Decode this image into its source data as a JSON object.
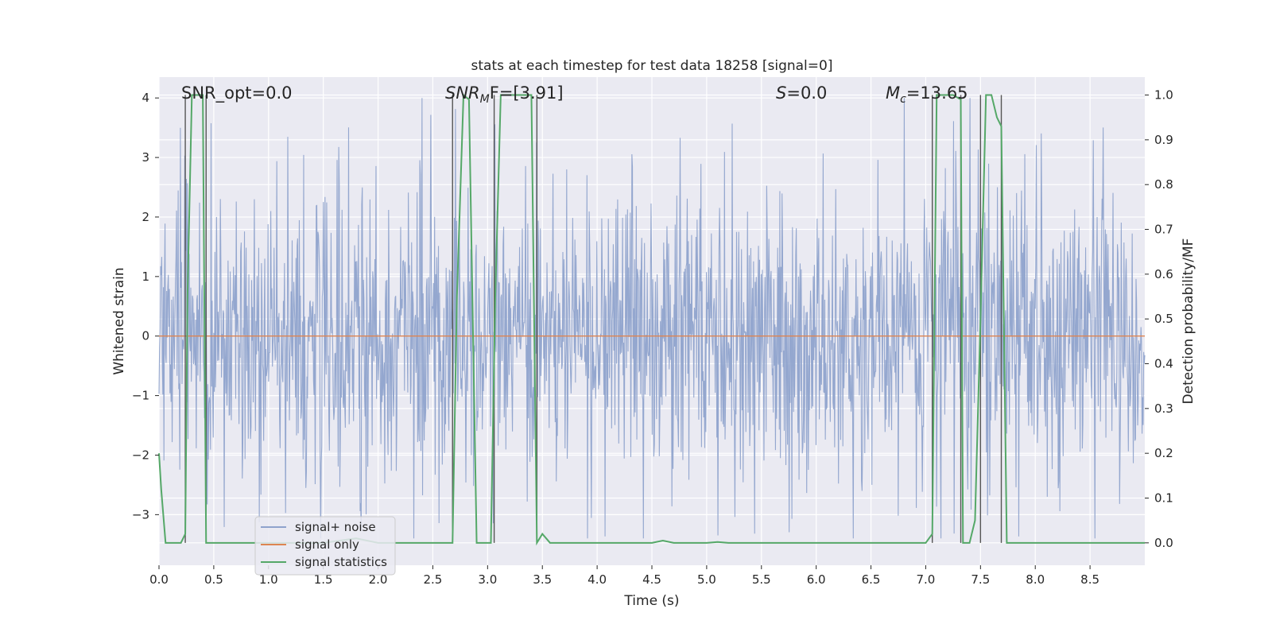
{
  "chart_data": {
    "type": "line",
    "title": "stats at each timestep for test data 18258 [signal=0]",
    "xlabel": "Time (s)",
    "ylabel_left": "Whitened strain",
    "ylabel_right": "Detection probability/MF",
    "xlim": [
      0,
      9
    ],
    "ylim_left": [
      -3.85,
      4.35
    ],
    "ylim_right": [
      -0.05,
      1.04
    ],
    "x_ticks": [
      "0.0",
      "0.5",
      "1.0",
      "1.5",
      "2.0",
      "2.5",
      "3.0",
      "3.5",
      "4.0",
      "4.5",
      "5.0",
      "5.5",
      "6.0",
      "6.5",
      "7.0",
      "7.5",
      "8.0",
      "8.5"
    ],
    "y_left_ticks": [
      "4",
      "3",
      "2",
      "1",
      "0",
      "−1",
      "−2",
      "−3"
    ],
    "y_right_ticks": [
      "1.0",
      "0.9",
      "0.8",
      "0.7",
      "0.6",
      "0.5",
      "0.4",
      "0.3",
      "0.2",
      "0.1",
      "0.0"
    ],
    "annotations": {
      "snr_opt": "SNR_opt=0.0",
      "snr_mf_prefix": "SNR",
      "snr_mf_sub": "M",
      "snr_mf_suffix": "F=[3.91]",
      "s_symbol": "S",
      "s_value": "=0.0",
      "mc_symbol": "M",
      "mc_sub": "c",
      "mc_value": "=13.65"
    },
    "legend": [
      "signal+ noise",
      "signal only",
      "signal statistics"
    ],
    "colors": {
      "noise": "#8fa3cc",
      "signal_only": "#dd8452",
      "statistics": "#55a868",
      "vline": "#555555",
      "background": "#eaeaf2",
      "grid": "#ffffff"
    },
    "noise_envelope": {
      "seed": 18258,
      "samples": 1800,
      "core_sigma": 1.1,
      "spike_max": 4.0,
      "spike_min": -3.4
    },
    "signal_only": {
      "x": [
        0,
        9
      ],
      "y": [
        0,
        0
      ]
    },
    "vertical_lines_x": [
      0.24,
      0.43,
      2.68,
      3.06,
      3.45,
      7.06,
      7.32,
      7.5,
      7.69
    ],
    "series": [
      {
        "name": "signal statistics",
        "axis": "right",
        "x": [
          0.0,
          0.02,
          0.06,
          0.1,
          0.2,
          0.24,
          0.26,
          0.3,
          0.4,
          0.43,
          0.45,
          0.5,
          1.0,
          1.5,
          1.8,
          2.0,
          2.5,
          2.63,
          2.68,
          2.72,
          2.78,
          2.83,
          2.9,
          3.0,
          3.03,
          3.07,
          3.12,
          3.2,
          3.4,
          3.45,
          3.5,
          3.57,
          4.0,
          4.5,
          4.6,
          4.7,
          5.0,
          5.1,
          5.2,
          6.0,
          7.0,
          7.06,
          7.1,
          7.15,
          7.25,
          7.32,
          7.34,
          7.4,
          7.45,
          7.5,
          7.55,
          7.6,
          7.65,
          7.69,
          7.74,
          8.0,
          8.5,
          9.0
        ],
        "y": [
          0.2,
          0.12,
          0.0,
          0.0,
          0.0,
          0.02,
          0.55,
          1.0,
          1.0,
          0.0,
          0.0,
          0.0,
          0.0,
          0.0,
          0.01,
          0.0,
          0.0,
          0.0,
          0.0,
          0.55,
          1.0,
          0.99,
          0.0,
          0.0,
          0.0,
          0.55,
          1.0,
          1.0,
          1.0,
          0.0,
          0.02,
          0.0,
          0.0,
          0.0,
          0.005,
          0.0,
          0.0,
          0.002,
          0.0,
          0.0,
          0.0,
          0.02,
          1.0,
          1.0,
          1.0,
          0.99,
          0.0,
          0.0,
          0.05,
          0.5,
          1.0,
          1.0,
          0.95,
          0.93,
          0.0,
          0.0,
          0.0,
          0.0
        ]
      }
    ]
  }
}
